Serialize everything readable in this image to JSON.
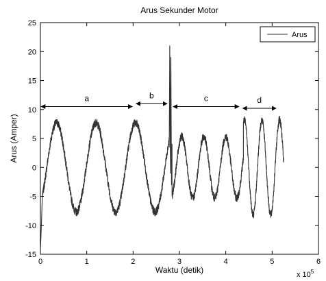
{
  "chart_data": {
    "type": "line",
    "title": "Arus Sekunder Motor",
    "xlabel": "Waktu (detik)",
    "ylabel": "Arus (Amper)",
    "x_multiplier_label": "x 10",
    "x_multiplier_exponent": "5",
    "xlim": [
      0,
      6
    ],
    "ylim": [
      -15,
      25
    ],
    "xticks": [
      "0",
      "1",
      "2",
      "3",
      "4",
      "5",
      "6"
    ],
    "yticks": [
      "-15",
      "-10",
      "-5",
      "0",
      "5",
      "10",
      "15",
      "20",
      "25"
    ],
    "grid": false,
    "legend_position": "top-right",
    "series": [
      {
        "name": "Arus",
        "color": "#333333",
        "segments": [
          {
            "x_start": 0.0,
            "x_end": 0.05,
            "kind": "transient",
            "values": [
              -14,
              -12,
              -9,
              -6,
              -4
            ]
          },
          {
            "x_start": 0.05,
            "x_end": 2.78,
            "kind": "sine",
            "period": 0.85,
            "phase_peak_x": 0.35,
            "amplitude": 7.7,
            "offset": 0.0
          },
          {
            "x_start": 2.78,
            "x_end": 2.84,
            "kind": "spike",
            "values": [
              3.5,
              21,
              -1,
              19,
              -3,
              4
            ]
          },
          {
            "x_start": 2.84,
            "x_end": 4.38,
            "kind": "sine",
            "period": 0.475,
            "phase_peak_x": 3.05,
            "amplitude": 5.3,
            "offset": 0.0
          },
          {
            "x_start": 4.38,
            "x_end": 5.25,
            "kind": "sine",
            "period": 0.38,
            "phase_peak_x": 4.4,
            "amplitude": 8.2,
            "offset": 0.0
          }
        ]
      }
    ],
    "annotations": [
      {
        "label": "a",
        "x_start": 0.0,
        "x_end": 2.0,
        "y": 10.5
      },
      {
        "label": "b",
        "x_start": 2.05,
        "x_end": 2.75,
        "y": 11.0
      },
      {
        "label": "c",
        "x_start": 2.85,
        "x_end": 4.3,
        "y": 10.5
      },
      {
        "label": "d",
        "x_start": 4.35,
        "x_end": 5.1,
        "y": 10.2
      }
    ]
  }
}
